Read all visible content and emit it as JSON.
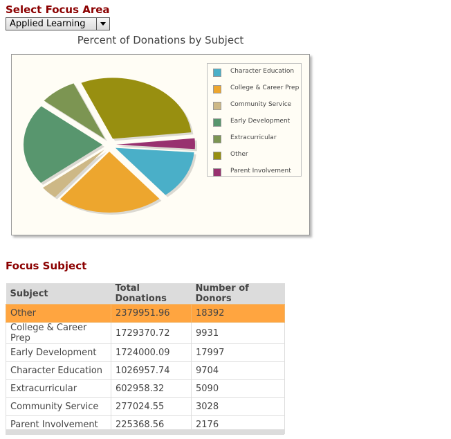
{
  "select_heading": "Select Focus Area",
  "focus_select": {
    "value": "Applied Learning"
  },
  "chart_data": {
    "type": "pie",
    "title": "Percent of Donations by Subject",
    "legend_position": "right",
    "slices": [
      {
        "label": "Character Education",
        "value": 1026957.74,
        "color": "#4aafc8"
      },
      {
        "label": "College & Career Prep",
        "value": 1729370.72,
        "color": "#eda62e"
      },
      {
        "label": "Community Service",
        "value": 277024.55,
        "color": "#cdb886"
      },
      {
        "label": "Early Development",
        "value": 1724000.09,
        "color": "#58966e"
      },
      {
        "label": "Extracurricular",
        "value": 602958.32,
        "color": "#7c9552"
      },
      {
        "label": "Other",
        "value": 2379951.96,
        "color": "#988f10"
      },
      {
        "label": "Parent Involvement",
        "value": 225368.56,
        "color": "#98316f"
      }
    ]
  },
  "focus_heading": "Focus Subject",
  "table": {
    "headers": [
      "Subject",
      "Total Donations",
      "Number of Donors"
    ],
    "selected_row": 0,
    "rows": [
      [
        "Other",
        "2379951.96",
        "18392"
      ],
      [
        "College & Career Prep",
        "1729370.72",
        "9931"
      ],
      [
        "Early Development",
        "1724000.09",
        "17997"
      ],
      [
        "Character Education",
        "1026957.74",
        "9704"
      ],
      [
        "Extracurricular",
        "602958.32",
        "5090"
      ],
      [
        "Community Service",
        "277024.55",
        "3028"
      ],
      [
        "Parent Involvement",
        "225368.56",
        "2176"
      ]
    ]
  }
}
